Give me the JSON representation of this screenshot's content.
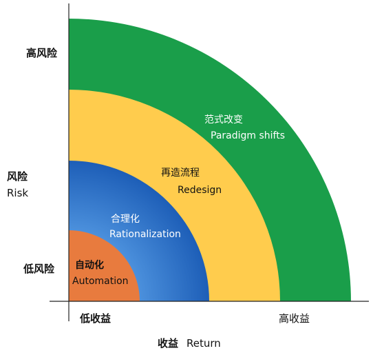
{
  "y_axis": {
    "high_label": "高风险",
    "title_cn": "风险",
    "title_en": "Risk",
    "low_label": "低风险"
  },
  "x_axis": {
    "low_label": "低收益",
    "high_label": "高收益",
    "title_cn": "收益",
    "title_en": "Return"
  },
  "bands": [
    {
      "label_cn": "自动化",
      "label_en": "Automation",
      "color": "#E87B3E"
    },
    {
      "label_cn": "合理化",
      "label_en": "Rationalization",
      "color": "#2A72C6"
    },
    {
      "label_cn": "再造流程",
      "label_en": "Redesign",
      "color": "#FFCC4D"
    },
    {
      "label_cn": "范式改变",
      "label_en": "Paradigm shifts",
      "color": "#1A9E4A"
    }
  ]
}
